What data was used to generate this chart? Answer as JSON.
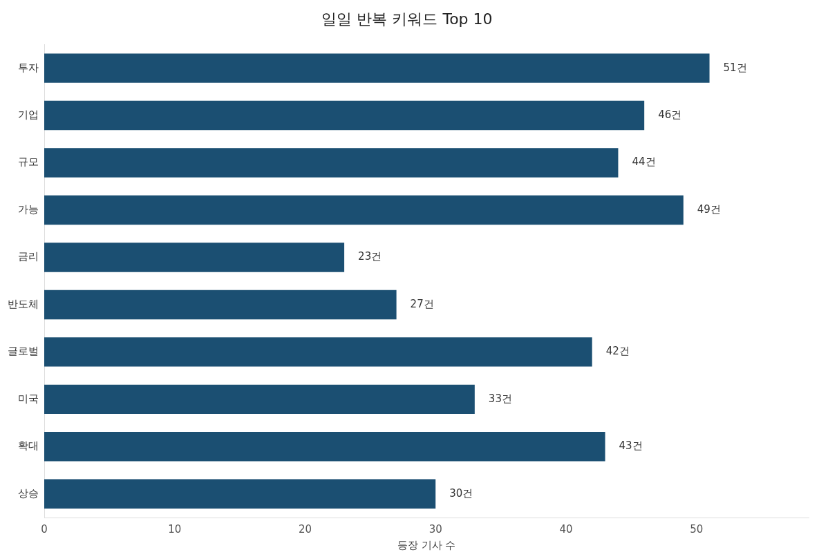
{
  "chart_data": {
    "type": "bar",
    "orientation": "horizontal",
    "title": "일일 반복 키워드 Top 10",
    "xlabel": "등장 기사 수",
    "categories": [
      "투자",
      "기업",
      "규모",
      "가능",
      "금리",
      "반도체",
      "글로벌",
      "미국",
      "확대",
      "상승"
    ],
    "values": [
      51,
      46,
      44,
      49,
      23,
      27,
      42,
      33,
      43,
      30
    ],
    "value_labels": [
      "51건",
      "46건",
      "44건",
      "49건",
      "23건",
      "27건",
      "42건",
      "33건",
      "43건",
      "30건"
    ],
    "color": "#1b4f72",
    "xlim": [
      0,
      58.6
    ],
    "xticks": [
      0,
      10,
      20,
      30,
      40,
      50
    ],
    "grid": false,
    "legend": false
  }
}
